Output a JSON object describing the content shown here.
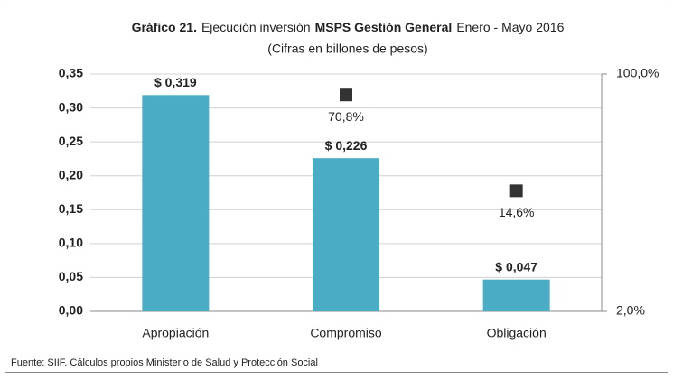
{
  "chart_data": {
    "type": "bar",
    "title": [
      {
        "text": "Gráfico 21.",
        "bold": true
      },
      {
        "text": "Ejecución inversión",
        "bold": false
      },
      {
        "text": "MSPS Gestión General",
        "bold": true
      },
      {
        "text": "Enero - Mayo 2016",
        "bold": false
      }
    ],
    "subtitle": "(Cifras en billones de pesos)",
    "categories": [
      "Apropiación",
      "Compromiso",
      "Obligación"
    ],
    "series": [
      {
        "type": "bar",
        "color": "#4bacc6",
        "values": [
          0.319,
          0.226,
          0.047
        ],
        "value_labels": [
          "$ 0,319",
          "$ 0,226",
          "$ 0,047"
        ]
      },
      {
        "type": "scatter",
        "axis": "y2",
        "color": "#333333",
        "values": [
          null,
          70.8,
          14.6
        ],
        "value_labels": [
          null,
          "70,8%",
          "14,6%"
        ]
      }
    ],
    "ylim": [
      0,
      0.35
    ],
    "yticks": [
      {
        "value": 0,
        "label": "0,00"
      },
      {
        "value": 0.05,
        "label": "0,05"
      },
      {
        "value": 0.1,
        "label": "0,10"
      },
      {
        "value": 0.15,
        "label": "0,15"
      },
      {
        "value": 0.2,
        "label": "0,20"
      },
      {
        "value": 0.25,
        "label": "0,25"
      },
      {
        "value": 0.3,
        "label": "0,30"
      },
      {
        "value": 0.35,
        "label": "0,35"
      }
    ],
    "y2lim": [
      2,
      100
    ],
    "y2ticks": [
      {
        "value": 2,
        "label": "2,0%"
      },
      {
        "value": 100,
        "label": "100,0%"
      }
    ],
    "y2log": true,
    "grid": true,
    "note": "Fuente: SIIF. Cálculos propios Ministerio de Salud y Protección Social"
  }
}
